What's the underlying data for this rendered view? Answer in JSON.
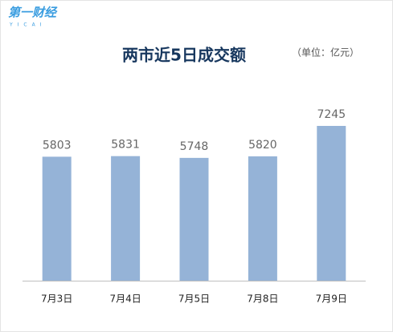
{
  "logo": {
    "name": "第一财经",
    "sub": "YICAI"
  },
  "chart_data": {
    "type": "bar",
    "title": "两市近5日成交额",
    "subtitle": "（单位：亿元）",
    "categories": [
      "7月3日",
      "7月4日",
      "7月5日",
      "7月8日",
      "7月9日"
    ],
    "values": [
      5803,
      5831,
      5748,
      5820,
      7245
    ],
    "color": "#95b3d7"
  }
}
